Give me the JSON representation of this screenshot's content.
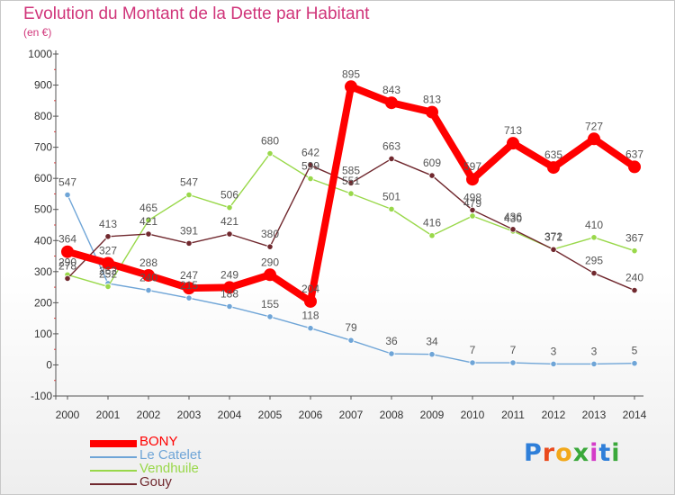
{
  "header": {
    "title": "Evolution du Montant de la Dette par Habitant",
    "subtitle": "(en €)"
  },
  "logo": {
    "text": "Proxiti",
    "colors": [
      "#2f7fd9",
      "#ea4a1d",
      "#f2a81a",
      "#3aa83a",
      "#d43cc8",
      "#2f7fd9",
      "#3aa83a"
    ]
  },
  "chart_data": {
    "type": "line",
    "title": "Evolution du Montant de la Dette par Habitant",
    "ylabel": "(en €)",
    "xlabel": "",
    "x": [
      "2000",
      "2001",
      "2002",
      "2003",
      "2004",
      "2005",
      "2006",
      "2007",
      "2008",
      "2009",
      "2010",
      "2011",
      "2012",
      "2013",
      "2014"
    ],
    "ylim": [
      -100,
      1000
    ],
    "yticks": [
      -100,
      0,
      100,
      200,
      300,
      400,
      500,
      600,
      700,
      800,
      900,
      1000
    ],
    "grid": false,
    "legend_position": "bottom-left",
    "series": [
      {
        "name": "BONY",
        "color": "#ff0000",
        "values": [
          364,
          327,
          288,
          247,
          249,
          290,
          204,
          895,
          843,
          813,
          597,
          713,
          635,
          727,
          637
        ]
      },
      {
        "name": "Le Catelet",
        "color": "#6fa5d7",
        "values": [
          547,
          262,
          240,
          215,
          188,
          155,
          118,
          79,
          36,
          34,
          7,
          7,
          3,
          3,
          5
        ]
      },
      {
        "name": "Vendhuile",
        "color": "#99d84a",
        "values": [
          290,
          252,
          465,
          547,
          506,
          680,
          599,
          551,
          501,
          416,
          479,
          430,
          372,
          410,
          367
        ]
      },
      {
        "name": "Gouy",
        "color": "#70282e",
        "values": [
          278,
          413,
          421,
          391,
          421,
          380,
          642,
          585,
          663,
          609,
          498,
          436,
          371,
          295,
          240
        ]
      }
    ]
  }
}
